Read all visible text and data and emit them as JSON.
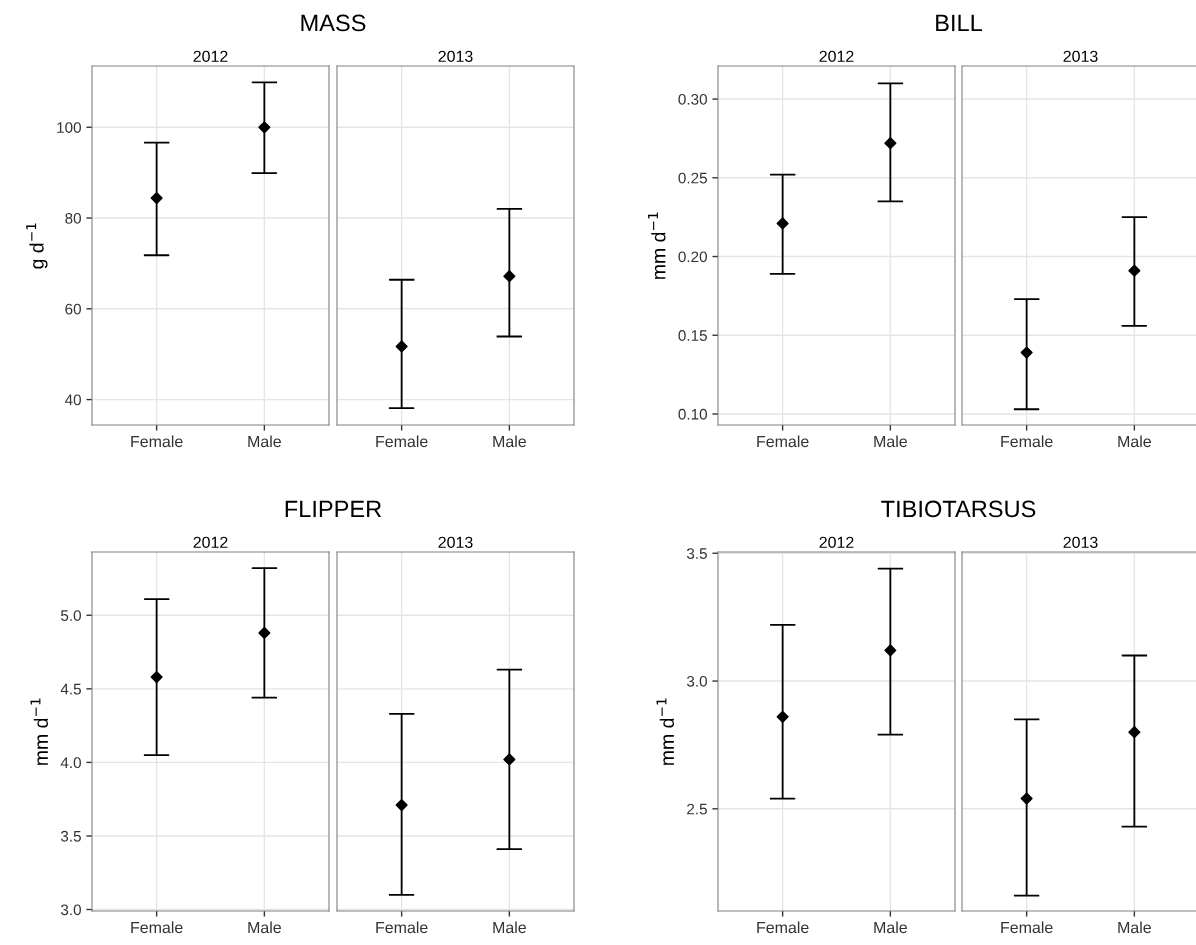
{
  "chart_data": [
    {
      "type": "scatter",
      "title": "MASS",
      "subtitle": "2012",
      "ylabel": "g d$^{−1}$",
      "categories": [
        "Female",
        "Male"
      ],
      "values": [
        84.4,
        100
      ],
      "errors": [
        [
          71.8,
          96.6
        ],
        [
          89.9,
          109.9
        ]
      ],
      "color": "#000000",
      "marker": "diamond",
      "ylim": [
        34.4,
        113.5
      ],
      "yticks": [
        40,
        60,
        80,
        100
      ],
      "grid": true
    },
    {
      "type": "scatter",
      "subtitle": "2013",
      "categories": [
        "Female",
        "Male"
      ],
      "values": [
        51.7,
        67.2
      ],
      "errors": [
        [
          38.1,
          66.4
        ],
        [
          53.9,
          82.0
        ]
      ],
      "color": "#000000",
      "marker": "diamond",
      "ylim": [
        34.4,
        113.5
      ],
      "yticks": [
        40,
        60,
        80,
        100
      ],
      "grid": true,
      "tick_labels": "x"
    },
    {
      "type": "scatter",
      "title": "BILL",
      "subtitle": "2012",
      "ylabel": "mm d$^{−1}$",
      "categories": [
        "Female",
        "Male"
      ],
      "values": [
        0.221,
        0.272
      ],
      "errors": [
        [
          0.189,
          0.252
        ],
        [
          0.235,
          0.31
        ]
      ],
      "color": "#000000",
      "marker": "diamond",
      "ylim": [
        0.093,
        0.321
      ],
      "yticks": [
        {
          "value": 0.1,
          "label": "0.10"
        },
        {
          "value": 0.15,
          "label": "0.15"
        },
        {
          "value": 0.2,
          "label": "0.20"
        },
        {
          "value": 0.25,
          "label": "0.25"
        },
        {
          "value": 0.3,
          "label": "0.30"
        }
      ],
      "grid": true
    },
    {
      "type": "scatter",
      "subtitle": "2013",
      "categories": [
        "Female",
        "Male"
      ],
      "values": [
        0.139,
        0.191
      ],
      "errors": [
        [
          0.103,
          0.173
        ],
        [
          0.156,
          0.225
        ]
      ],
      "color": "#000000",
      "marker": "diamond",
      "ylim": [
        0.093,
        0.321
      ],
      "yticks": [
        0.1,
        0.15,
        0.2,
        0.25,
        0.3
      ],
      "grid": true,
      "tick_labels": "x"
    },
    {
      "type": "scatter",
      "title": "FLIPPER",
      "subtitle": "2012",
      "ylabel": "mm d$^{−1}$",
      "categories": [
        "Female",
        "Male"
      ],
      "values": [
        4.58,
        4.88
      ],
      "errors": [
        [
          4.05,
          5.11
        ],
        [
          4.44,
          5.32
        ]
      ],
      "color": "#000000",
      "marker": "diamond",
      "ylim": [
        2.99,
        5.43
      ],
      "yticks": [
        {
          "value": 3,
          "label": "3.0"
        },
        3.5,
        {
          "value": 4,
          "label": "4.0"
        },
        4.5,
        {
          "value": 5,
          "label": "5.0"
        }
      ],
      "grid": true
    },
    {
      "type": "scatter",
      "subtitle": "2013",
      "categories": [
        "Female",
        "Male"
      ],
      "values": [
        3.71,
        4.02
      ],
      "errors": [
        [
          3.1,
          4.33
        ],
        [
          3.41,
          4.63
        ]
      ],
      "color": "#000000",
      "marker": "diamond",
      "ylim": [
        2.99,
        5.43
      ],
      "yticks": [
        3,
        3.5,
        4,
        4.5,
        5
      ],
      "grid": true,
      "tick_labels": "x"
    },
    {
      "type": "scatter",
      "title": "TIBIOTARSUS",
      "subtitle": "2012",
      "ylabel": "mm d$^{−1}$",
      "categories": [
        "Female",
        "Male"
      ],
      "values": [
        2.86,
        3.12
      ],
      "errors": [
        [
          2.54,
          3.22
        ],
        [
          2.79,
          3.44
        ]
      ],
      "color": "#000000",
      "marker": "diamond",
      "ylim": [
        2.1,
        3.505
      ],
      "yticks": [
        2.5,
        {
          "value": 3,
          "label": "3.0"
        },
        3.5
      ],
      "grid": true
    },
    {
      "type": "scatter",
      "subtitle": "2013",
      "categories": [
        "Female",
        "Male"
      ],
      "values": [
        2.54,
        2.8
      ],
      "errors": [
        [
          2.16,
          2.85
        ],
        [
          2.43,
          3.1
        ]
      ],
      "color": "#000000",
      "marker": "diamond",
      "ylim": [
        2.1,
        3.505
      ],
      "yticks": [
        2.5,
        3,
        3.5
      ],
      "grid": true,
      "tick_labels": "x"
    }
  ]
}
